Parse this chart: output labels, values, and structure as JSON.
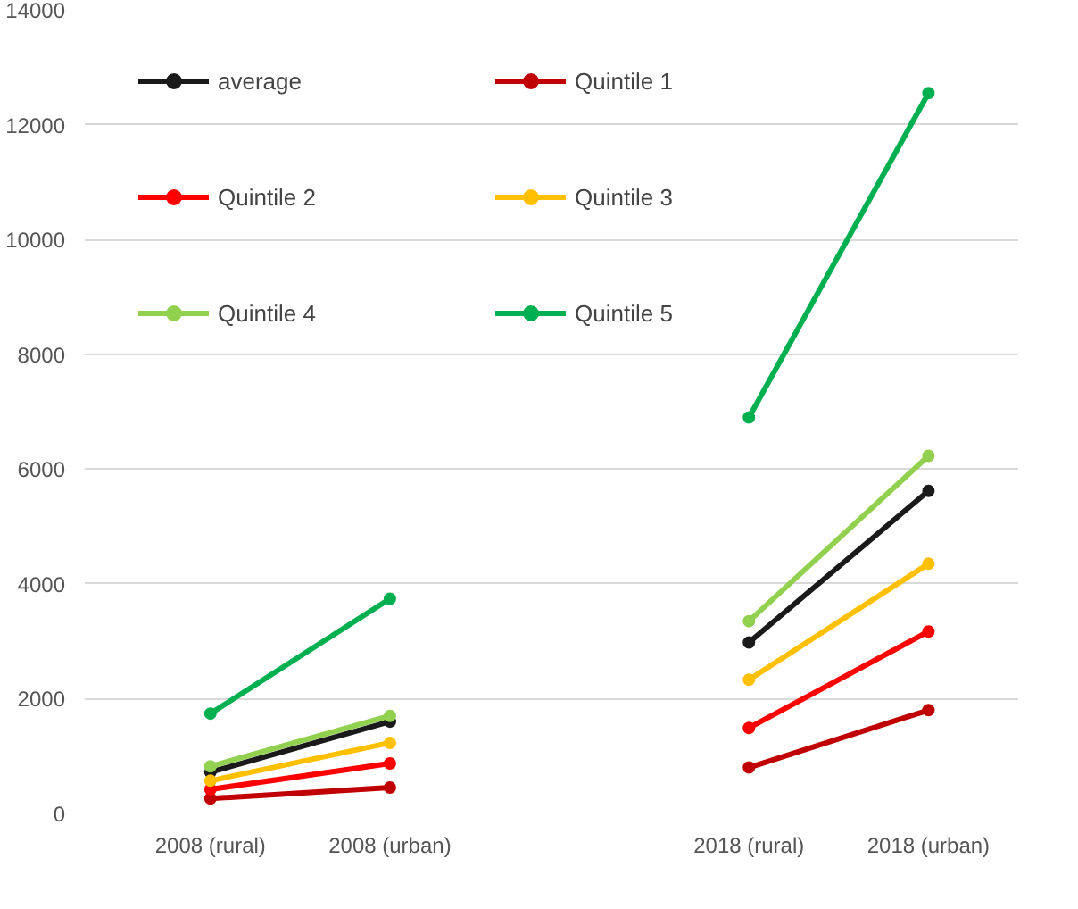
{
  "chart_data": {
    "type": "line",
    "categories": [
      "2008 (rural)",
      "2008 (urban)",
      null,
      "2018 (rural)",
      "2018 (urban)"
    ],
    "series": [
      {
        "name": "average",
        "color": "#1a1a1a",
        "values": [
          720,
          1600,
          null,
          2980,
          5620
        ]
      },
      {
        "name": "Quintile 1",
        "color": "#c00000",
        "values": [
          260,
          450,
          null,
          800,
          1800
        ]
      },
      {
        "name": "Quintile 2",
        "color": "#ff0000",
        "values": [
          420,
          870,
          null,
          1490,
          3170
        ]
      },
      {
        "name": "Quintile 3",
        "color": "#ffc000",
        "values": [
          570,
          1230,
          null,
          2330,
          4350
        ]
      },
      {
        "name": "Quintile 4",
        "color": "#92d050",
        "values": [
          820,
          1700,
          null,
          3350,
          6230
        ]
      },
      {
        "name": "Quintile 5",
        "color": "#00b050",
        "values": [
          1740,
          3740,
          null,
          6900,
          12550
        ]
      }
    ],
    "ylim": [
      0,
      14000
    ],
    "yticks": [
      0,
      2000,
      4000,
      6000,
      8000,
      10000,
      12000,
      14000
    ],
    "grid": "y",
    "legend": "top left",
    "marker": "circle",
    "line_style": "solid"
  }
}
